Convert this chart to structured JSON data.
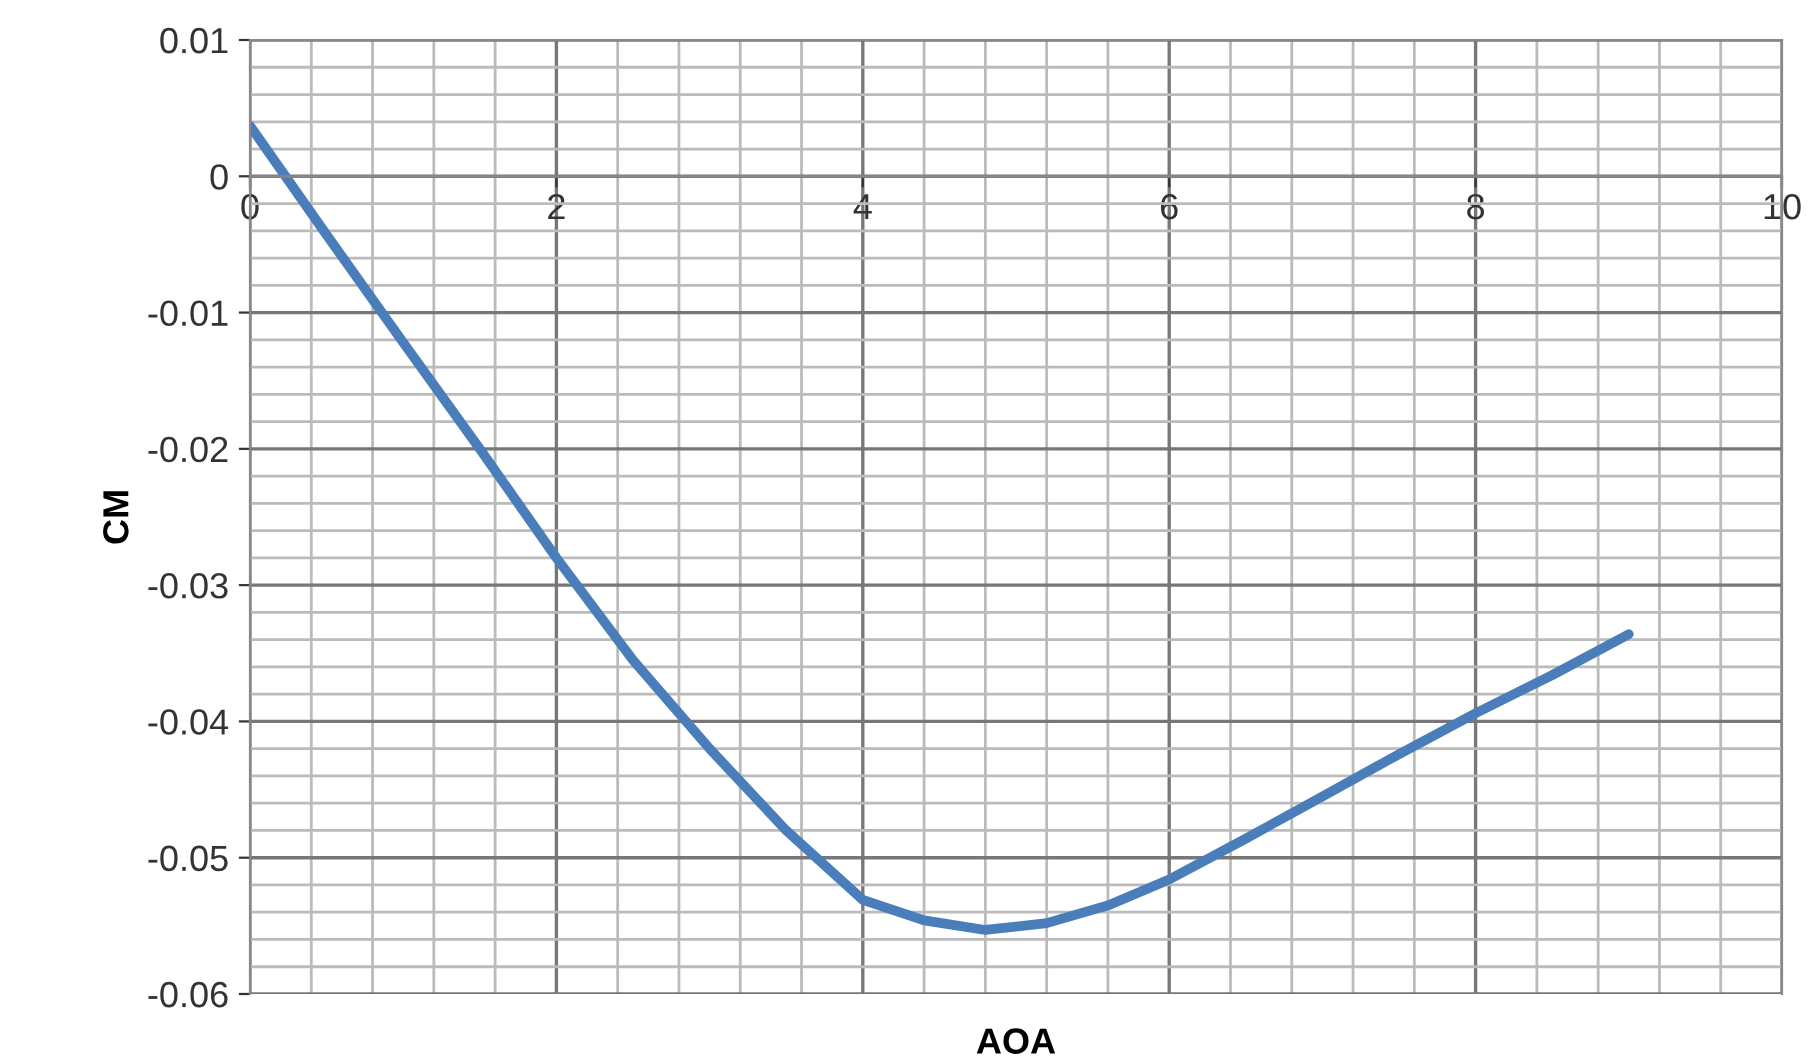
{
  "chart_data": {
    "type": "line",
    "xlabel": "AOA",
    "ylabel": "CM",
    "series": [
      {
        "color": "#4a7ebb",
        "x": [
          0,
          0.5,
          1,
          1.5,
          2,
          2.5,
          3,
          3.5,
          4,
          4.4,
          4.8,
          5.2,
          5.6,
          6,
          6.5,
          7,
          7.5,
          8,
          8.5,
          9
        ],
        "values": [
          0.0037,
          -0.0043,
          -0.0122,
          -0.02,
          -0.028,
          -0.0355,
          -0.042,
          -0.048,
          -0.0531,
          -0.0546,
          -0.0553,
          -0.0548,
          -0.0535,
          -0.0516,
          -0.0486,
          -0.0455,
          -0.0424,
          -0.0394,
          -0.0366,
          -0.0336
        ]
      }
    ],
    "xlim": [
      0,
      10
    ],
    "xticks": [
      0,
      2,
      4,
      6,
      8,
      10
    ],
    "ylim": [
      -0.06,
      0.01
    ],
    "yticks": [
      0.01,
      0,
      -0.01,
      -0.02,
      -0.03,
      -0.04,
      -0.05,
      -0.06
    ],
    "grid": true,
    "marker": "none",
    "line_style": "solid"
  }
}
